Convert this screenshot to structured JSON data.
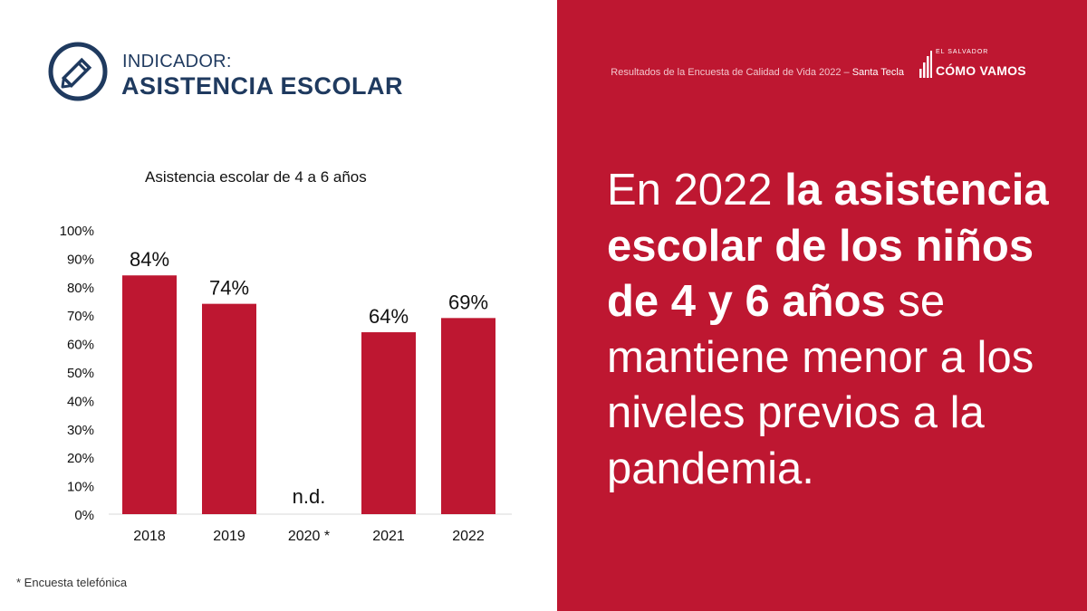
{
  "indicator": {
    "label": "INDICADOR:",
    "title": "ASISTENCIA ESCOLAR"
  },
  "header": {
    "source_text": "Resultados de la Encuesta de Calidad de Vida 2022 – ",
    "source_city": "Santa Tecla",
    "logo_small": "EL SALVADOR",
    "logo_big": "CÓMO VAMOS"
  },
  "chart_data": {
    "type": "bar",
    "title": "Asistencia escolar de 4 a 6 años",
    "categories": [
      "2018",
      "2019",
      "2020 *",
      "2021",
      "2022"
    ],
    "values": [
      84,
      74,
      null,
      64,
      69
    ],
    "data_labels": [
      "84%",
      "74%",
      "n.d.",
      "64%",
      "69%"
    ],
    "ylim": [
      0,
      100
    ],
    "yticks": [
      "0%",
      "10%",
      "20%",
      "30%",
      "40%",
      "50%",
      "60%",
      "70%",
      "80%",
      "90%",
      "100%"
    ],
    "bar_color": "#be1731",
    "grid": false
  },
  "footnote": "* Encuesta telefónica",
  "headline": {
    "p1": "En 2022 ",
    "b1": "la asistencia escolar de los niños de 4 y 6 años",
    "p2": " se mantiene menor a los niveles previos a la pandemia."
  },
  "colors": {
    "accent": "#be1731",
    "navy": "#1f3a5f"
  },
  "icons": {
    "indicator": "pencil-circle-icon",
    "logo": "bars-chart-icon"
  }
}
